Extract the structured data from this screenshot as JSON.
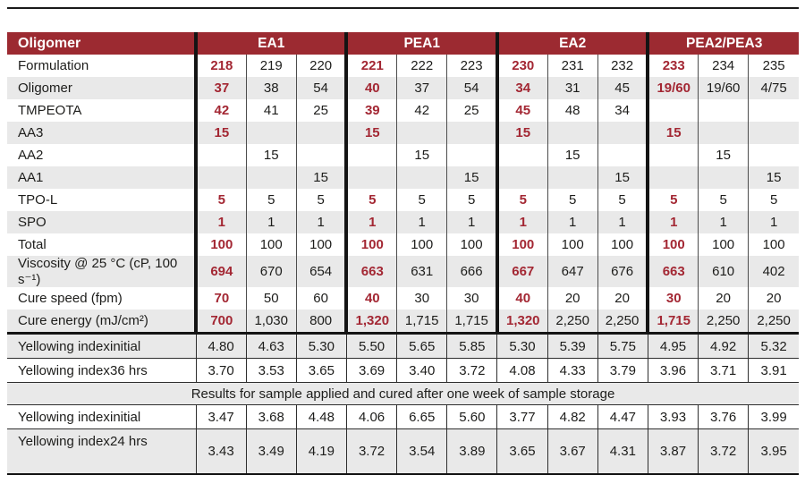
{
  "chart_data": {
    "type": "table",
    "header": {
      "label": "Oligomer",
      "groups": [
        "EA1",
        "PEA1",
        "EA2",
        "PEA2/PEA3"
      ]
    },
    "rows": [
      {
        "label": "Formulation",
        "values": [
          "218",
          "219",
          "220",
          "221",
          "222",
          "223",
          "230",
          "231",
          "232",
          "233",
          "234",
          "235"
        ]
      },
      {
        "label": "Oligomer",
        "values": [
          "37",
          "38",
          "54",
          "40",
          "37",
          "54",
          "34",
          "31",
          "45",
          "19/60",
          "19/60",
          "4/75"
        ]
      },
      {
        "label": "TMPEOTA",
        "values": [
          "42",
          "41",
          "25",
          "39",
          "42",
          "25",
          "45",
          "48",
          "34",
          "",
          "",
          ""
        ]
      },
      {
        "label": "AA3",
        "values": [
          "15",
          "",
          "",
          "15",
          "",
          "",
          "15",
          "",
          "",
          "15",
          "",
          ""
        ]
      },
      {
        "label": "AA2",
        "values": [
          "",
          "15",
          "",
          "",
          "15",
          "",
          "",
          "15",
          "",
          "",
          "15",
          ""
        ]
      },
      {
        "label": "AA1",
        "values": [
          "",
          "",
          "15",
          "",
          "",
          "15",
          "",
          "",
          "15",
          "",
          "",
          "15"
        ]
      },
      {
        "label": "TPO-L",
        "values": [
          "5",
          "5",
          "5",
          "5",
          "5",
          "5",
          "5",
          "5",
          "5",
          "5",
          "5",
          "5"
        ]
      },
      {
        "label": "SPO",
        "values": [
          "1",
          "1",
          "1",
          "1",
          "1",
          "1",
          "1",
          "1",
          "1",
          "1",
          "1",
          "1"
        ]
      },
      {
        "label": "Total",
        "values": [
          "100",
          "100",
          "100",
          "100",
          "100",
          "100",
          "100",
          "100",
          "100",
          "100",
          "100",
          "100"
        ]
      },
      {
        "label": "Viscosity @ 25 °C (cP, 100 s⁻¹)",
        "values": [
          "694",
          "670",
          "654",
          "663",
          "631",
          "666",
          "667",
          "647",
          "676",
          "663",
          "610",
          "402"
        ]
      },
      {
        "label": "Cure speed (fpm)",
        "values": [
          "70",
          "50",
          "60",
          "40",
          "30",
          "30",
          "40",
          "20",
          "20",
          "30",
          "20",
          "20"
        ]
      },
      {
        "label": "Cure energy (mJ/cm²)",
        "values": [
          "700",
          "1,030",
          "800",
          "1,320",
          "1,715",
          "1,715",
          "1,320",
          "2,250",
          "2,250",
          "1,715",
          "2,250",
          "2,250"
        ]
      }
    ],
    "yellowing": {
      "block1": [
        {
          "label": "Yellowing index",
          "sublabel": "initial",
          "values": [
            "4.80",
            "4.63",
            "5.30",
            "5.50",
            "5.65",
            "5.85",
            "5.30",
            "5.39",
            "5.75",
            "4.95",
            "4.92",
            "5.32"
          ]
        },
        {
          "label": "Yellowing index",
          "sublabel": "36 hrs",
          "values": [
            "3.70",
            "3.53",
            "3.65",
            "3.69",
            "3.40",
            "3.72",
            "4.08",
            "4.33",
            "3.79",
            "3.96",
            "3.71",
            "3.91"
          ]
        }
      ],
      "note": "Results for sample applied and cured after one week of sample storage",
      "block2": [
        {
          "label": "Yellowing index",
          "sublabel": "initial",
          "values": [
            "3.47",
            "3.68",
            "4.48",
            "4.06",
            "6.65",
            "5.60",
            "3.77",
            "4.82",
            "4.47",
            "3.93",
            "3.76",
            "3.99"
          ]
        },
        {
          "label": "Yellowing index",
          "sublabel": "24 hrs",
          "values": [
            "3.43",
            "3.49",
            "4.19",
            "3.72",
            "3.54",
            "3.89",
            "3.65",
            "3.67",
            "4.31",
            "3.87",
            "3.72",
            "3.95"
          ]
        }
      ]
    }
  },
  "colors": {
    "header_bg": "#9c2a31",
    "accent_text": "#a32733",
    "alt_row": "#e9e9e9",
    "border_dark": "#141414",
    "border_thin": "#4d4d4d"
  }
}
